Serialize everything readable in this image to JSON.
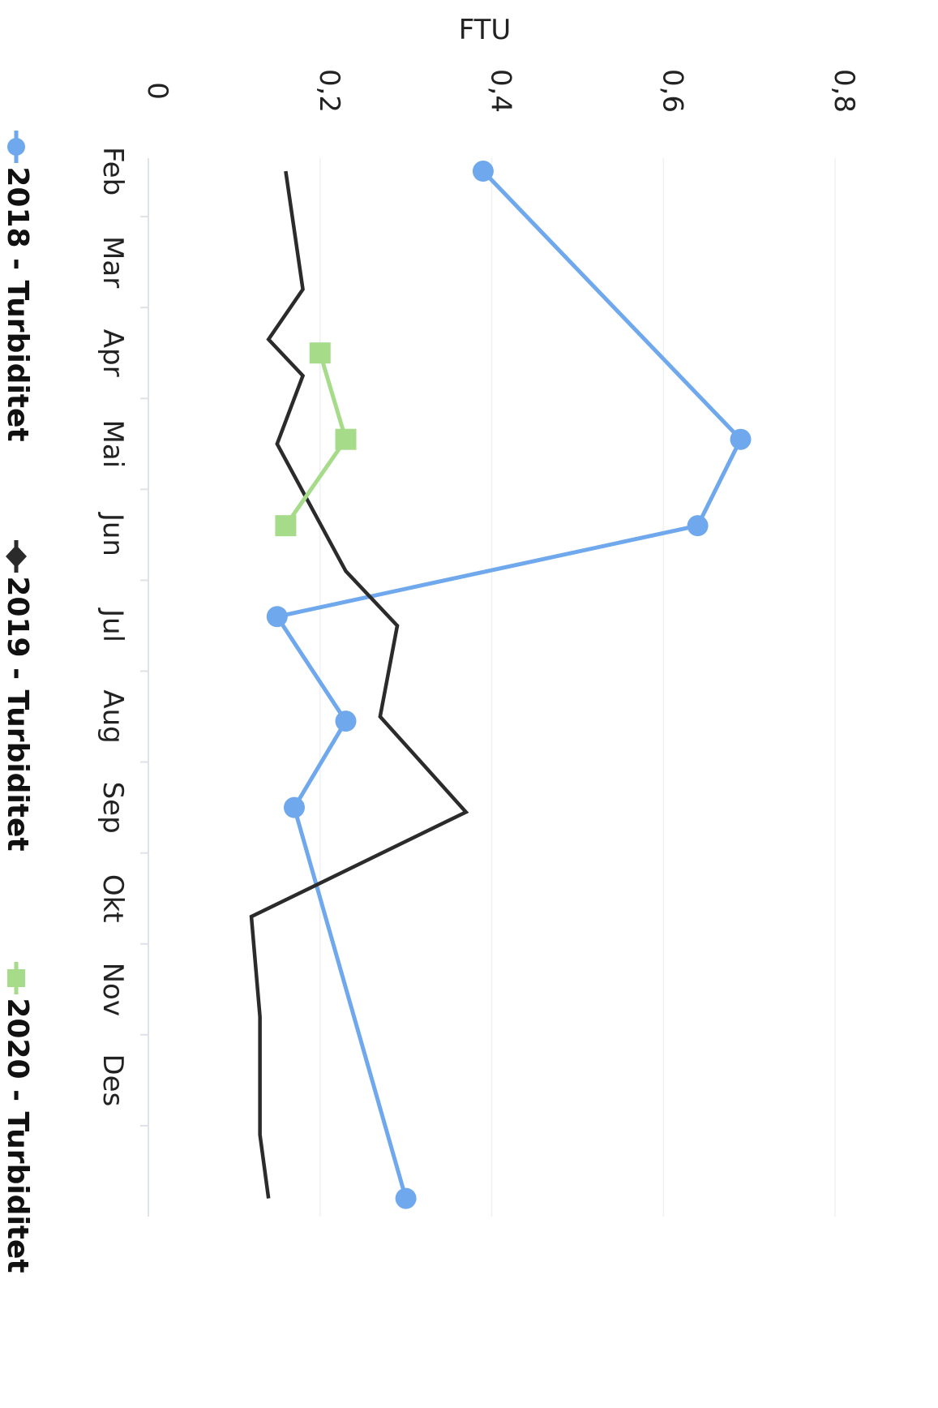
{
  "chart_data": {
    "type": "line",
    "orientation": "rotated-90-clockwise",
    "ylabel": "FTU",
    "ylim": [
      0,
      0.8
    ],
    "yticks": [
      {
        "value": 0,
        "label": "0"
      },
      {
        "value": 0.2,
        "label": "0,2"
      },
      {
        "value": 0.4,
        "label": "0,4"
      },
      {
        "value": 0.6,
        "label": "0,6"
      },
      {
        "value": 0.8,
        "label": "0,8"
      }
    ],
    "xlim": [
      1,
      13
    ],
    "month_ticks": [
      {
        "label": "Feb",
        "pos": 2
      },
      {
        "label": "Mar",
        "pos": 3
      },
      {
        "label": "Apr",
        "pos": 4
      },
      {
        "label": "Mai",
        "pos": 5
      },
      {
        "label": "Jun",
        "pos": 6
      },
      {
        "label": "Jul",
        "pos": 7
      },
      {
        "label": "Aug",
        "pos": 8
      },
      {
        "label": "Sep",
        "pos": 9
      },
      {
        "label": "Okt",
        "pos": 10
      },
      {
        "label": "Nov",
        "pos": 11
      },
      {
        "label": "Des",
        "pos": 12
      }
    ],
    "grid": true,
    "legend_position": "bottom",
    "series": [
      {
        "name": "2018 - Turbiditet",
        "color": "#6fa8ec",
        "marker": "circle",
        "x": [
          1.5,
          4.45,
          5.4,
          6.4,
          7.55,
          8.5,
          12.8
        ],
        "values": [
          0.39,
          0.69,
          0.64,
          0.15,
          0.23,
          0.17,
          0.3
        ]
      },
      {
        "name": "2019 - Turbiditet",
        "color": "#2b2b2b",
        "marker": "diamond",
        "x": [
          1.5,
          2.8,
          3.35,
          3.75,
          4.5,
          5.9,
          6.5,
          7.5,
          8.55,
          9.7,
          10.8,
          12.1,
          12.8
        ],
        "values": [
          0.16,
          0.18,
          0.14,
          0.18,
          0.15,
          0.23,
          0.29,
          0.27,
          0.37,
          0.12,
          0.13,
          0.13,
          0.14
        ]
      },
      {
        "name": "2020 - Turbiditet",
        "color": "#a6db8a",
        "marker": "square",
        "x": [
          3.5,
          4.45,
          5.4
        ],
        "values": [
          0.2,
          0.23,
          0.16
        ]
      }
    ]
  }
}
